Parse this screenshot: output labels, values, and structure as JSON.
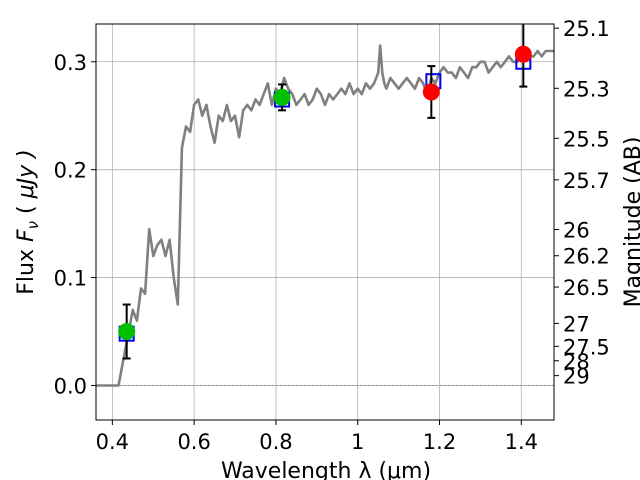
{
  "chart_data": {
    "type": "line",
    "xlabel": "Wavelength  λ (μm)",
    "ylabel": "Flux  F_ν  ( μJy )",
    "ylabel_parts": {
      "prefix": "Flux  ",
      "sym": "F",
      "sub": "ν",
      "mid": "  ( ",
      "unit": "μJy )"
    },
    "y2label": "Magnitude (AB)",
    "xlim": [
      0.36,
      1.48
    ],
    "ylim": [
      -0.032,
      0.335
    ],
    "grid": true,
    "x_ticks": [
      0.4,
      0.6,
      0.8,
      1.0,
      1.2,
      1.4
    ],
    "x_tick_labels": [
      "0.4",
      "0.6",
      "0.8",
      "1",
      "1.2",
      "1.4"
    ],
    "y_ticks": [
      0.0,
      0.1,
      0.2,
      0.3
    ],
    "y_tick_labels": [
      "0.0",
      "0.1",
      "0.2",
      "0.3"
    ],
    "y2_ticks": [
      25.1,
      25.3,
      25.5,
      25.7,
      26,
      26.2,
      26.5,
      27,
      27.5,
      28,
      29
    ],
    "y2_tick_labels": [
      "25.1",
      "25.3",
      "25.5",
      "25.7",
      "26",
      "26.2",
      "26.5",
      "27",
      "27.5",
      "28",
      "29"
    ],
    "zero_line": 0.0,
    "colors": {
      "spectrum": "#808080",
      "model_box": "#0000ff",
      "observed_green": "#00c000",
      "observed_red": "#ff0000",
      "errorbar": "#000000",
      "grid": "#b0b0b0"
    },
    "series": [
      {
        "kind": "spectrum",
        "x": [
          0.36,
          0.4,
          0.415,
          0.43,
          0.44,
          0.45,
          0.46,
          0.47,
          0.48,
          0.49,
          0.5,
          0.51,
          0.52,
          0.53,
          0.54,
          0.55,
          0.56,
          0.57,
          0.58,
          0.59,
          0.6,
          0.61,
          0.62,
          0.63,
          0.64,
          0.65,
          0.66,
          0.67,
          0.68,
          0.69,
          0.7,
          0.71,
          0.72,
          0.73,
          0.74,
          0.75,
          0.76,
          0.77,
          0.78,
          0.79,
          0.8,
          0.81,
          0.82,
          0.83,
          0.84,
          0.85,
          0.86,
          0.87,
          0.88,
          0.89,
          0.9,
          0.91,
          0.92,
          0.93,
          0.94,
          0.95,
          0.96,
          0.97,
          0.98,
          0.99,
          1.0,
          1.01,
          1.02,
          1.03,
          1.04,
          1.05,
          1.055,
          1.06,
          1.065,
          1.07,
          1.08,
          1.09,
          1.1,
          1.11,
          1.12,
          1.13,
          1.14,
          1.15,
          1.16,
          1.17,
          1.18,
          1.19,
          1.2,
          1.21,
          1.22,
          1.23,
          1.24,
          1.25,
          1.26,
          1.27,
          1.28,
          1.29,
          1.3,
          1.31,
          1.32,
          1.33,
          1.34,
          1.35,
          1.36,
          1.37,
          1.38,
          1.39,
          1.4,
          1.41,
          1.42,
          1.43,
          1.44,
          1.45,
          1.46,
          1.47,
          1.48
        ],
        "y": [
          0.0,
          0.0,
          0.0,
          0.03,
          0.05,
          0.07,
          0.06,
          0.09,
          0.085,
          0.145,
          0.12,
          0.13,
          0.135,
          0.12,
          0.135,
          0.1,
          0.075,
          0.22,
          0.24,
          0.235,
          0.26,
          0.265,
          0.25,
          0.26,
          0.24,
          0.225,
          0.25,
          0.245,
          0.26,
          0.245,
          0.25,
          0.23,
          0.255,
          0.26,
          0.255,
          0.265,
          0.26,
          0.27,
          0.28,
          0.26,
          0.275,
          0.27,
          0.285,
          0.275,
          0.27,
          0.26,
          0.265,
          0.27,
          0.26,
          0.265,
          0.275,
          0.27,
          0.26,
          0.27,
          0.265,
          0.27,
          0.275,
          0.27,
          0.28,
          0.27,
          0.275,
          0.27,
          0.28,
          0.275,
          0.28,
          0.29,
          0.315,
          0.29,
          0.28,
          0.275,
          0.285,
          0.28,
          0.275,
          0.28,
          0.285,
          0.28,
          0.275,
          0.285,
          0.28,
          0.27,
          0.285,
          0.28,
          0.29,
          0.295,
          0.29,
          0.29,
          0.285,
          0.295,
          0.29,
          0.285,
          0.295,
          0.295,
          0.3,
          0.3,
          0.29,
          0.295,
          0.3,
          0.295,
          0.3,
          0.305,
          0.3,
          0.3,
          0.305,
          0.31,
          0.305,
          0.305,
          0.31,
          0.305,
          0.31,
          0.31,
          0.31
        ]
      },
      {
        "kind": "model_boxes",
        "points": [
          {
            "x": 0.435,
            "y": 0.048
          },
          {
            "x": 0.815,
            "y": 0.265
          },
          {
            "x": 1.185,
            "y": 0.282
          },
          {
            "x": 1.405,
            "y": 0.3
          }
        ]
      },
      {
        "kind": "observed",
        "points": [
          {
            "x": 0.435,
            "y": 0.05,
            "yerr": 0.025,
            "color": "green"
          },
          {
            "x": 0.815,
            "y": 0.267,
            "yerr": 0.012,
            "color": "green"
          },
          {
            "x": 1.18,
            "y": 0.272,
            "yerr": 0.024,
            "color": "red"
          },
          {
            "x": 1.405,
            "y": 0.307,
            "yerr": 0.03,
            "color": "red"
          }
        ]
      }
    ]
  }
}
